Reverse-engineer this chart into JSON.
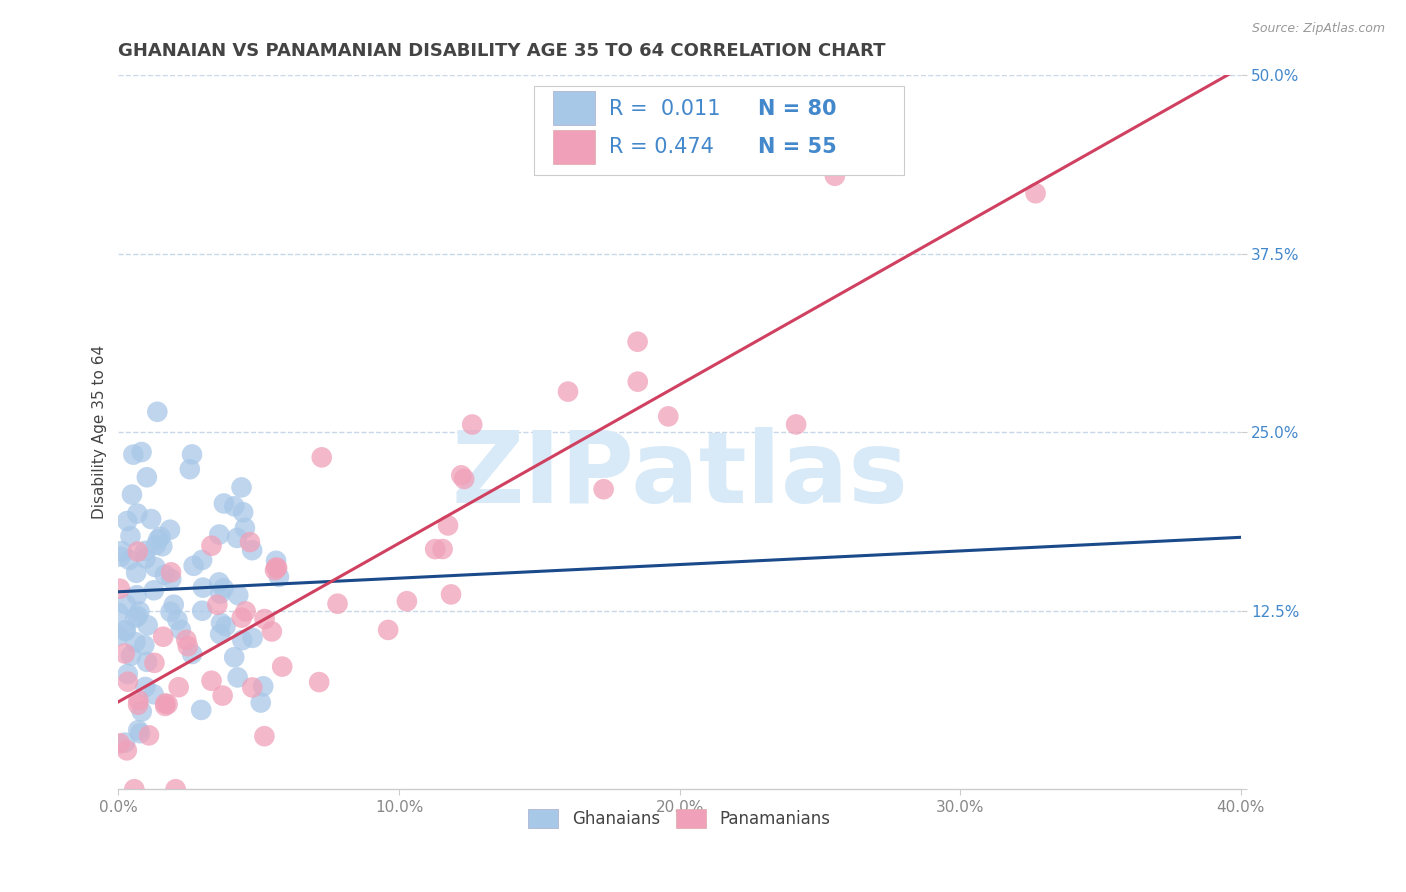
{
  "title": "GHANAIAN VS PANAMANIAN DISABILITY AGE 35 TO 64 CORRELATION CHART",
  "source": "Source: ZipAtlas.com",
  "ylabel": "Disability Age 35 to 64",
  "xlim": [
    0.0,
    0.4
  ],
  "ylim": [
    0.0,
    0.5
  ],
  "xticks": [
    0.0,
    0.1,
    0.2,
    0.3,
    0.4
  ],
  "xtick_labels": [
    "0.0%",
    "10.0%",
    "20.0%",
    "30.0%",
    "40.0%"
  ],
  "yticks": [
    0.0,
    0.125,
    0.25,
    0.375,
    0.5
  ],
  "ytick_labels": [
    "",
    "12.5%",
    "25.0%",
    "37.5%",
    "50.0%"
  ],
  "blue_color": "#a8c8e8",
  "pink_color": "#f0a0b8",
  "blue_line_color": "#1a4a8a",
  "pink_line_color": "#d04060",
  "watermark_text": "ZIPatlas",
  "watermark_color": "#d8eaf8",
  "background_color": "#ffffff",
  "grid_color": "#c8d8e8",
  "N_ghanaian": 80,
  "N_panamanian": 55,
  "R_ghanaian": 0.011,
  "R_panamanian": 0.474,
  "title_color": "#444444",
  "title_fontsize": 13,
  "axis_label_fontsize": 11,
  "tick_fontsize": 11,
  "tick_color_x": "#888888",
  "tick_color_y": "#4488cc",
  "legend_text_color_R": "#444444",
  "legend_text_color_N": "#4488cc",
  "legend_fontsize": 15,
  "source_fontsize": 9,
  "source_color": "#999999"
}
